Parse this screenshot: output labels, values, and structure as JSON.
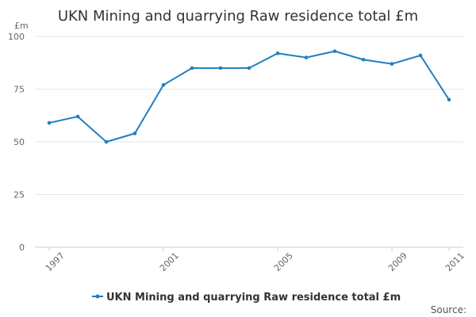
{
  "colors": {
    "series": "#1f7fbf",
    "grid": "#e6e6e6",
    "axis": "#c0d0e0",
    "text": "#333333",
    "muted": "#666666"
  },
  "chart_data": {
    "type": "line",
    "title": "UKN Mining and quarrying Raw residence total £m",
    "xlabel": "",
    "ylabel": "£m",
    "x": [
      1997,
      1998,
      1999,
      2000,
      2001,
      2002,
      2003,
      2004,
      2005,
      2006,
      2007,
      2008,
      2009,
      2010,
      2011
    ],
    "series": [
      {
        "name": "UKN Mining and quarrying Raw residence total £m",
        "values": [
          59,
          62,
          50,
          54,
          77,
          85,
          85,
          85,
          92,
          90,
          93,
          89,
          87,
          91,
          70
        ]
      }
    ],
    "xlim": [
      1997,
      2011
    ],
    "ylim": [
      0,
      100
    ],
    "x_ticks": [
      "1997",
      "2001",
      "2005",
      "2009",
      "2011"
    ],
    "y_ticks": [
      "0",
      "25",
      "50",
      "75",
      "100"
    ],
    "grid": true,
    "legend_placement": "bottom-center",
    "source_label": "Source:"
  }
}
